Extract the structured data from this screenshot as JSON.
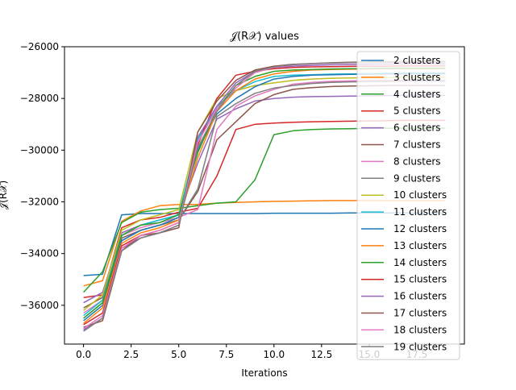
{
  "chart_data": {
    "type": "line",
    "title": "𝒥(R𝒳) values",
    "xlabel": "Iterations",
    "ylabel": "𝒥(R𝒳)",
    "xlim": [
      -1,
      20
    ],
    "ylim": [
      -37500,
      -26000
    ],
    "xticks": [
      0.0,
      2.5,
      5.0,
      7.5,
      10.0,
      12.5,
      15.0,
      17.5
    ],
    "xtick_labels": [
      "0.0",
      "2.5",
      "5.0",
      "7.5",
      "10.0",
      "12.5",
      "15.0",
      "17.5"
    ],
    "yticks": [
      -36000,
      -34000,
      -32000,
      -30000,
      -28000,
      -26000
    ],
    "ytick_labels": [
      "−36000",
      "−34000",
      "−32000",
      "−30000",
      "−28000",
      "−26000"
    ],
    "grid": false,
    "legend_position": "upper right",
    "x": [
      0,
      1,
      2,
      3,
      4,
      5,
      6,
      7,
      8,
      9,
      10,
      11,
      12,
      13,
      14,
      15,
      16,
      17,
      18,
      19
    ],
    "series": [
      {
        "name": "2 clusters",
        "color": "#1f77b4",
        "values": [
          -34850,
          -34800,
          -32500,
          -32450,
          -32450,
          -32450,
          -32450,
          -32450,
          -32450,
          -32450,
          -32440,
          -32440,
          -32440,
          -32440,
          -32430,
          -32430,
          -32430,
          -32430,
          -32430,
          -32430
        ]
      },
      {
        "name": "3 clusters",
        "color": "#ff7f0e",
        "values": [
          -35250,
          -35050,
          -32750,
          -32350,
          -32150,
          -32100,
          -32100,
          -32050,
          -32020,
          -32000,
          -31980,
          -31970,
          -31960,
          -31950,
          -31950,
          -31950,
          -31950,
          -31950,
          -31950,
          -31950
        ]
      },
      {
        "name": "4 clusters",
        "color": "#2ca02c",
        "values": [
          -35500,
          -34700,
          -32800,
          -32400,
          -32300,
          -32250,
          -32150,
          -32050,
          -32000,
          -31150,
          -29400,
          -29250,
          -29200,
          -29180,
          -29170,
          -29160,
          -29150,
          -29150,
          -29150,
          -29150
        ]
      },
      {
        "name": "5 clusters",
        "color": "#d62728",
        "values": [
          -35700,
          -35600,
          -33000,
          -32700,
          -32600,
          -32400,
          -32250,
          -31000,
          -29200,
          -29000,
          -28950,
          -28920,
          -28900,
          -28890,
          -28880,
          -28870,
          -28860,
          -28850,
          -28850,
          -28850
        ]
      },
      {
        "name": "6 clusters",
        "color": "#9467bd",
        "values": [
          -35900,
          -35500,
          -33200,
          -32900,
          -32700,
          -32500,
          -30500,
          -28800,
          -28400,
          -28100,
          -28000,
          -27950,
          -27930,
          -27920,
          -27910,
          -27900,
          -27890,
          -27880,
          -27880,
          -27880
        ]
      },
      {
        "name": "7 clusters",
        "color": "#8c564b",
        "values": [
          -36100,
          -35700,
          -33400,
          -33100,
          -32900,
          -32700,
          -31600,
          -29600,
          -28900,
          -28200,
          -27850,
          -27650,
          -27580,
          -27540,
          -27520,
          -27510,
          -27500,
          -27500,
          -27500,
          -27500
        ]
      },
      {
        "name": "8 clusters",
        "color": "#e377c2",
        "values": [
          -36300,
          -35800,
          -33300,
          -33000,
          -32800,
          -32600,
          -32300,
          -29200,
          -28300,
          -27900,
          -27650,
          -27450,
          -27380,
          -27340,
          -27320,
          -27310,
          -27300,
          -27300,
          -27300,
          -27300
        ]
      },
      {
        "name": "9 clusters",
        "color": "#7f7f7f",
        "values": [
          -36500,
          -35900,
          -33500,
          -33100,
          -32900,
          -32700,
          -31500,
          -28700,
          -28200,
          -27800,
          -27600,
          -27500,
          -27420,
          -27380,
          -27360,
          -27350,
          -27340,
          -27330,
          -27330,
          -27330
        ]
      },
      {
        "name": "10 clusters",
        "color": "#bcbd22",
        "values": [
          -36200,
          -35600,
          -33100,
          -32700,
          -32500,
          -32300,
          -29300,
          -28000,
          -27700,
          -27500,
          -27400,
          -27300,
          -27250,
          -27220,
          -27210,
          -27200,
          -27190,
          -27180,
          -27180,
          -27180
        ]
      },
      {
        "name": "11 clusters",
        "color": "#17becf",
        "values": [
          -36400,
          -35800,
          -33300,
          -32900,
          -32700,
          -32500,
          -29600,
          -28300,
          -27700,
          -27350,
          -27150,
          -27100,
          -27080,
          -27060,
          -27050,
          -27040,
          -27030,
          -27020,
          -27020,
          -27020
        ]
      },
      {
        "name": "12 clusters",
        "color": "#1f77b4",
        "values": [
          -36600,
          -36000,
          -33500,
          -33100,
          -32900,
          -32600,
          -30000,
          -28600,
          -28000,
          -27550,
          -27250,
          -27150,
          -27100,
          -27080,
          -27070,
          -27060,
          -27050,
          -27040,
          -27040,
          -27040
        ]
      },
      {
        "name": "13 clusters",
        "color": "#ff7f0e",
        "values": [
          -36700,
          -36100,
          -33600,
          -33200,
          -33000,
          -32700,
          -30300,
          -28500,
          -27700,
          -27250,
          -27050,
          -26950,
          -26900,
          -26880,
          -26870,
          -26860,
          -26850,
          -26850,
          -26850,
          -26850
        ]
      },
      {
        "name": "14 clusters",
        "color": "#2ca02c",
        "values": [
          -36500,
          -35900,
          -33300,
          -32900,
          -32800,
          -32500,
          -30100,
          -28400,
          -27500,
          -27150,
          -26950,
          -26900,
          -26880,
          -26860,
          -26850,
          -26840,
          -26830,
          -26830,
          -26830,
          -26830
        ]
      },
      {
        "name": "15 clusters",
        "color": "#d62728",
        "values": [
          -36750,
          -36300,
          -33700,
          -33300,
          -33100,
          -32800,
          -29800,
          -28000,
          -27100,
          -26950,
          -26850,
          -26800,
          -26780,
          -26770,
          -26760,
          -26750,
          -26750,
          -26740,
          -26740,
          -26740
        ]
      },
      {
        "name": "16 clusters",
        "color": "#9467bd",
        "values": [
          -36950,
          -36500,
          -33800,
          -33400,
          -33200,
          -32900,
          -29500,
          -28300,
          -27400,
          -26950,
          -26800,
          -26750,
          -26720,
          -26700,
          -26690,
          -26680,
          -26670,
          -26660,
          -26660,
          -26660
        ]
      },
      {
        "name": "17 clusters",
        "color": "#8c564b",
        "values": [
          -36850,
          -36600,
          -33900,
          -33300,
          -33200,
          -33000,
          -29300,
          -28100,
          -27300,
          -26900,
          -26750,
          -26680,
          -26650,
          -26620,
          -26600,
          -26590,
          -26580,
          -26570,
          -26570,
          -26570
        ]
      },
      {
        "name": "18 clusters",
        "color": "#e377c2",
        "values": [
          -36900,
          -36400,
          -33800,
          -33300,
          -33100,
          -32800,
          -29700,
          -28400,
          -27600,
          -27000,
          -26800,
          -26700,
          -26660,
          -26640,
          -26620,
          -26610,
          -26600,
          -26600,
          -26600,
          -26600
        ]
      },
      {
        "name": "19 clusters",
        "color": "#7f7f7f",
        "values": [
          -37000,
          -36500,
          -33900,
          -33400,
          -33200,
          -32900,
          -29900,
          -28500,
          -27500,
          -26950,
          -26780,
          -26690,
          -26650,
          -26630,
          -26610,
          -26600,
          -26590,
          -26580,
          -26580,
          -26580
        ]
      }
    ]
  }
}
